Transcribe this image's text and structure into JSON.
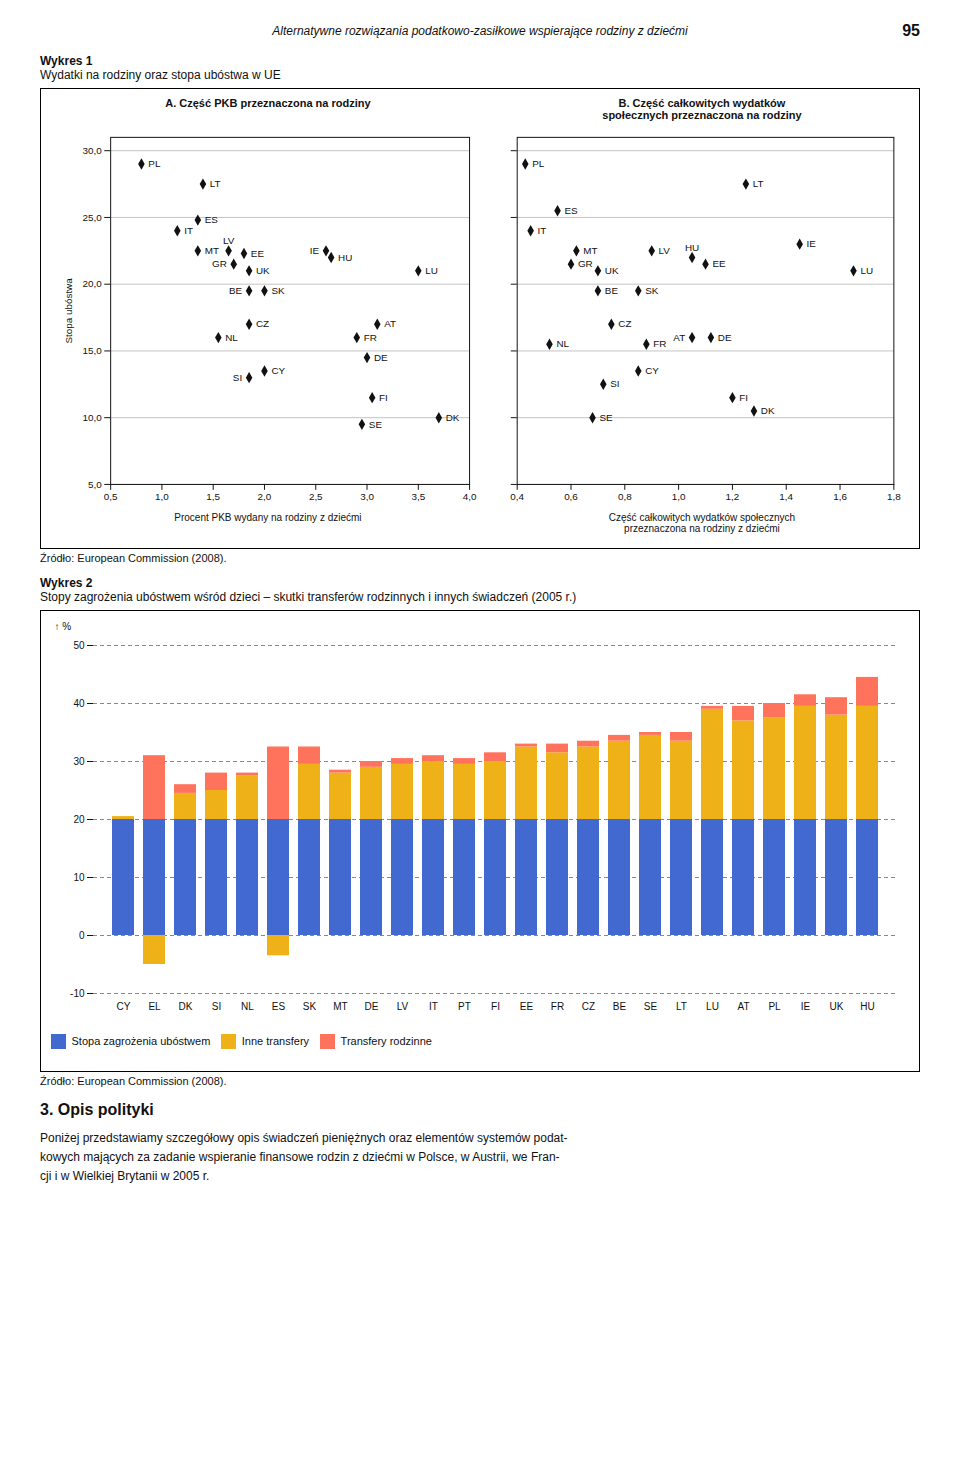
{
  "title": "Alternatywne rozwiązania podatkowo-zasiłkowe wspierające rodziny z dziećmi",
  "annotations": [
    "95",
    "Wykres 1",
    "Wydatki na rodziny oraz stopa ubóstwa w UE",
    "Źródło: European Commission (2008).",
    "Wykres 2",
    "Stopy zagrożenia ubóstwem wśród dzieci – skutki transferów rodzinnych i innych świadczeń (2005 r.)",
    "Źródło: European Commission (2008).",
    "3. Opis polityki",
    "Poniżej przedstawiamy szczegółowy opis świadczeń pieniężnych oraz elementów systemów podat-",
    "kowych mających za zadanie wspieranie finansowe rodzin z dziećmi w Polsce, w Austrii, we Fran-",
    "cji i w Wielkiej Brytanii w 2005 r."
  ],
  "chart_data": [
    {
      "type": "scatter",
      "title": "A. Część PKB przeznaczona na rodziny",
      "xlabel": "Procent PKB wydany na rodziny z dziećmi",
      "ylabel": "Stopa ubóstwa",
      "x": [
        0.8,
        1.4,
        1.35,
        1.15,
        1.35,
        1.65,
        1.8,
        1.7,
        1.85,
        2.6,
        2.65,
        1.85,
        2.0,
        1.55,
        1.85,
        2.9,
        3.1,
        3.0,
        3.5,
        1.85,
        2.0,
        3.05,
        2.95,
        3.7
      ],
      "values": [
        29.0,
        27.5,
        24.8,
        24.0,
        22.5,
        22.5,
        22.3,
        21.5,
        21.0,
        22.5,
        22.0,
        19.5,
        19.5,
        16.0,
        17.0,
        16.0,
        17.0,
        14.5,
        21.0,
        13.0,
        13.5,
        11.5,
        9.5,
        10.0
      ],
      "labels": [
        "PL",
        "LT",
        "ES",
        "IT",
        "MT",
        "LV",
        "EE",
        "GR",
        "UK",
        "IE",
        "HU",
        "BE",
        "SK",
        "NL",
        "CZ",
        "FR",
        "AT",
        "DE",
        "LU",
        "SI",
        "CY",
        "FI",
        "SE",
        "DK"
      ],
      "marker": "diamond",
      "xlim": [
        0.5,
        4.0
      ],
      "ylim": [
        5,
        31
      ],
      "xticks": [
        {
          "value": 0.5,
          "label": "0,5"
        },
        {
          "value": 1.0,
          "label": "1,0"
        },
        {
          "value": 1.5,
          "label": "1,5"
        },
        {
          "value": 2.0,
          "label": "2,0"
        },
        {
          "value": 2.5,
          "label": "2,5"
        },
        {
          "value": 3.0,
          "label": "3,0"
        },
        {
          "value": 3.5,
          "label": "3,5"
        },
        {
          "value": 4.0,
          "label": "4,0"
        }
      ],
      "yticks": [
        {
          "value": 5,
          "label": "5,0"
        },
        {
          "value": 10,
          "label": "10,0"
        },
        {
          "value": 15,
          "label": "15,0"
        },
        {
          "value": 20,
          "label": "20,0"
        },
        {
          "value": 25,
          "label": "25,0"
        },
        {
          "value": 30,
          "label": "30,0"
        }
      ],
      "grid": "y"
    },
    {
      "type": "scatter",
      "title": "B. Część całkowitych wydatków\nspołecznych przeznaczona na rodziny",
      "xlabel": "Część całkowitych wydatków społecznych\nprzeznaczona na rodziny z dziećmi",
      "x": [
        0.43,
        1.25,
        0.55,
        0.45,
        0.62,
        0.9,
        1.1,
        0.6,
        0.7,
        1.45,
        1.05,
        0.7,
        0.85,
        0.52,
        0.75,
        0.88,
        1.05,
        1.12,
        1.65,
        0.72,
        0.85,
        1.2,
        0.68,
        1.28
      ],
      "values": [
        29.0,
        27.5,
        25.5,
        24.0,
        22.5,
        22.5,
        21.5,
        21.5,
        21.0,
        23.0,
        22.0,
        19.5,
        19.5,
        15.5,
        17.0,
        15.5,
        16.0,
        16.0,
        21.0,
        12.5,
        13.5,
        11.5,
        10.0,
        10.5
      ],
      "labels": [
        "PL",
        "LT",
        "ES",
        "IT",
        "MT",
        "LV",
        "EE",
        "GR",
        "UK",
        "IE",
        "HU",
        "BE",
        "SK",
        "NL",
        "CZ",
        "FR",
        "AT",
        "DE",
        "LU",
        "SI",
        "CY",
        "FI",
        "SE",
        "DK"
      ],
      "marker": "diamond",
      "xlim": [
        0.4,
        1.8
      ],
      "ylim": [
        5,
        31
      ],
      "xticks": [
        {
          "value": 0.4,
          "label": "0,4"
        },
        {
          "value": 0.6,
          "label": "0,6"
        },
        {
          "value": 0.8,
          "label": "0,8"
        },
        {
          "value": 1.0,
          "label": "1,0"
        },
        {
          "value": 1.2,
          "label": "1,2"
        },
        {
          "value": 1.4,
          "label": "1,4"
        },
        {
          "value": 1.6,
          "label": "1,6"
        },
        {
          "value": 1.8,
          "label": "1,8"
        }
      ],
      "yticks": [
        {
          "value": 5,
          "label": "5,0"
        },
        {
          "value": 10,
          "label": "10,0"
        },
        {
          "value": 15,
          "label": "15,0"
        },
        {
          "value": 20,
          "label": "20,0"
        },
        {
          "value": 25,
          "label": "25,0"
        },
        {
          "value": 30,
          "label": "30,0"
        }
      ],
      "tick_labels": "x",
      "grid": "y"
    },
    {
      "type": "bar",
      "stacked": true,
      "ylabel": "%",
      "categories": [
        "CY",
        "EL",
        "DK",
        "SI",
        "NL",
        "ES",
        "SK",
        "MT",
        "DE",
        "LV",
        "IT",
        "PT",
        "FI",
        "EE",
        "FR",
        "CZ",
        "BE",
        "SE",
        "LT",
        "LU",
        "AT",
        "PL",
        "IE",
        "UK",
        "HU"
      ],
      "series": [
        {
          "name": "Stopa zagrożenia ubóstwem",
          "values": [
            20.0,
            20.0,
            20.0,
            20.0,
            20.0,
            20.0,
            20.0,
            20.0,
            20.0,
            20.0,
            20.0,
            20.0,
            20.0,
            20.0,
            20.0,
            20.0,
            20.0,
            20.0,
            20.0,
            20.0,
            20.0,
            20.0,
            20.0,
            20.0,
            20.0
          ]
        },
        {
          "name": "Inne transfery",
          "values": [
            0.5,
            -5.0,
            4.5,
            5.0,
            7.5,
            -3.5,
            9.5,
            8.0,
            9.0,
            9.5,
            10.0,
            9.5,
            10.0,
            12.5,
            11.5,
            12.5,
            13.5,
            14.5,
            13.5,
            19.0,
            17.0,
            17.5,
            19.5,
            18.0,
            19.5
          ]
        },
        {
          "name": "Transfery rodzinne",
          "values": [
            0.0,
            11.0,
            1.5,
            3.0,
            0.5,
            12.5,
            3.0,
            0.5,
            1.0,
            1.0,
            1.0,
            1.0,
            1.5,
            0.5,
            1.5,
            1.0,
            1.0,
            0.5,
            1.5,
            0.5,
            2.5,
            2.5,
            2.0,
            3.0,
            5.0
          ]
        }
      ],
      "ylim": [
        -10,
        50
      ],
      "yticks": [
        -10,
        0,
        10,
        20,
        30,
        40,
        50
      ],
      "grid": "y",
      "legend": "bottom"
    }
  ]
}
